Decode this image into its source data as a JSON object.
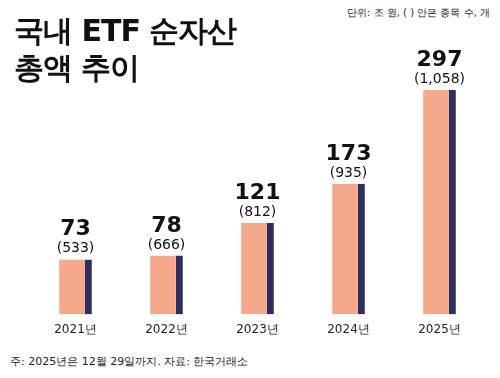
{
  "chart_data": {
    "type": "bar",
    "title": "국내 ETF 순자산총액 추이",
    "subtitle": "단위: 조 원, ( ) 안은 종목 수, 개",
    "note": "주: 2025년은 12월 29일까지. 자료: 한국거래소",
    "categories": [
      "2021년",
      "2022년",
      "2023년",
      "2024년",
      "2025년"
    ],
    "values": [
      73,
      78,
      121,
      173,
      297
    ],
    "counts": [
      533,
      666,
      812,
      935,
      1058
    ],
    "count_labels": [
      "(533)",
      "(666)",
      "(812)",
      "(935)",
      "(1,058)"
    ],
    "color": "#f5a98a",
    "data_labels": true,
    "tick_labels": "x",
    "grid": false
  }
}
